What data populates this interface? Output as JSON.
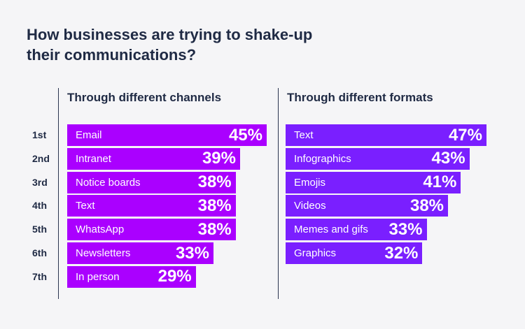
{
  "title": "How businesses are trying to shake-up their communications?",
  "chart_data": [
    {
      "type": "bar",
      "orientation": "horizontal",
      "title": "Through different channels",
      "color": "#aa00ff",
      "ranks": [
        "1st",
        "2nd",
        "3rd",
        "4th",
        "5th",
        "6th",
        "7th"
      ],
      "categories": [
        "Email",
        "Intranet",
        "Notice boards",
        "Text",
        "WhatsApp",
        "Newsletters",
        "In person"
      ],
      "values": [
        45,
        39,
        38,
        38,
        38,
        33,
        29
      ],
      "value_labels": [
        "45%",
        "39%",
        "38%",
        "38%",
        "38%",
        "33%",
        "29%"
      ],
      "unit": "%"
    },
    {
      "type": "bar",
      "orientation": "horizontal",
      "title": "Through different formats",
      "color": "#7a1fff",
      "categories": [
        "Text",
        "Infographics",
        "Emojis",
        "Videos",
        "Memes and gifs",
        "Graphics"
      ],
      "values": [
        47,
        43,
        41,
        38,
        33,
        32
      ],
      "value_labels": [
        "47%",
        "43%",
        "41%",
        "38%",
        "33%",
        "32%"
      ],
      "unit": "%"
    }
  ]
}
